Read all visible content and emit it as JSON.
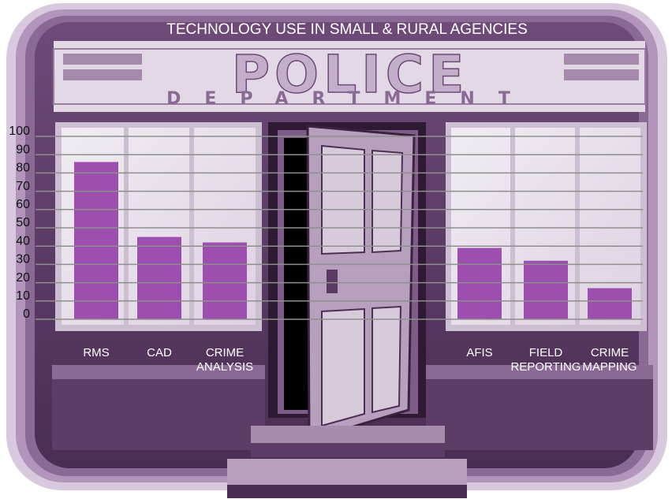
{
  "chart_data": {
    "type": "bar",
    "title": "TECHNOLOGY USE IN SMALL & RURAL AGENCIES",
    "categories": [
      "RMS",
      "CAD",
      "CRIME ANALYSIS",
      "AFIS",
      "FIELD REPORTING",
      "CRIME MAPPING"
    ],
    "values": [
      86,
      45,
      42,
      39,
      32,
      17
    ],
    "color": "#9c4fae",
    "ylim": [
      0,
      100
    ],
    "yticks": [
      0,
      10,
      20,
      30,
      40,
      50,
      60,
      70,
      80,
      90,
      100
    ],
    "grid": true
  },
  "sign": {
    "line1": "POLICE",
    "line2": "DEPARTMENT"
  }
}
